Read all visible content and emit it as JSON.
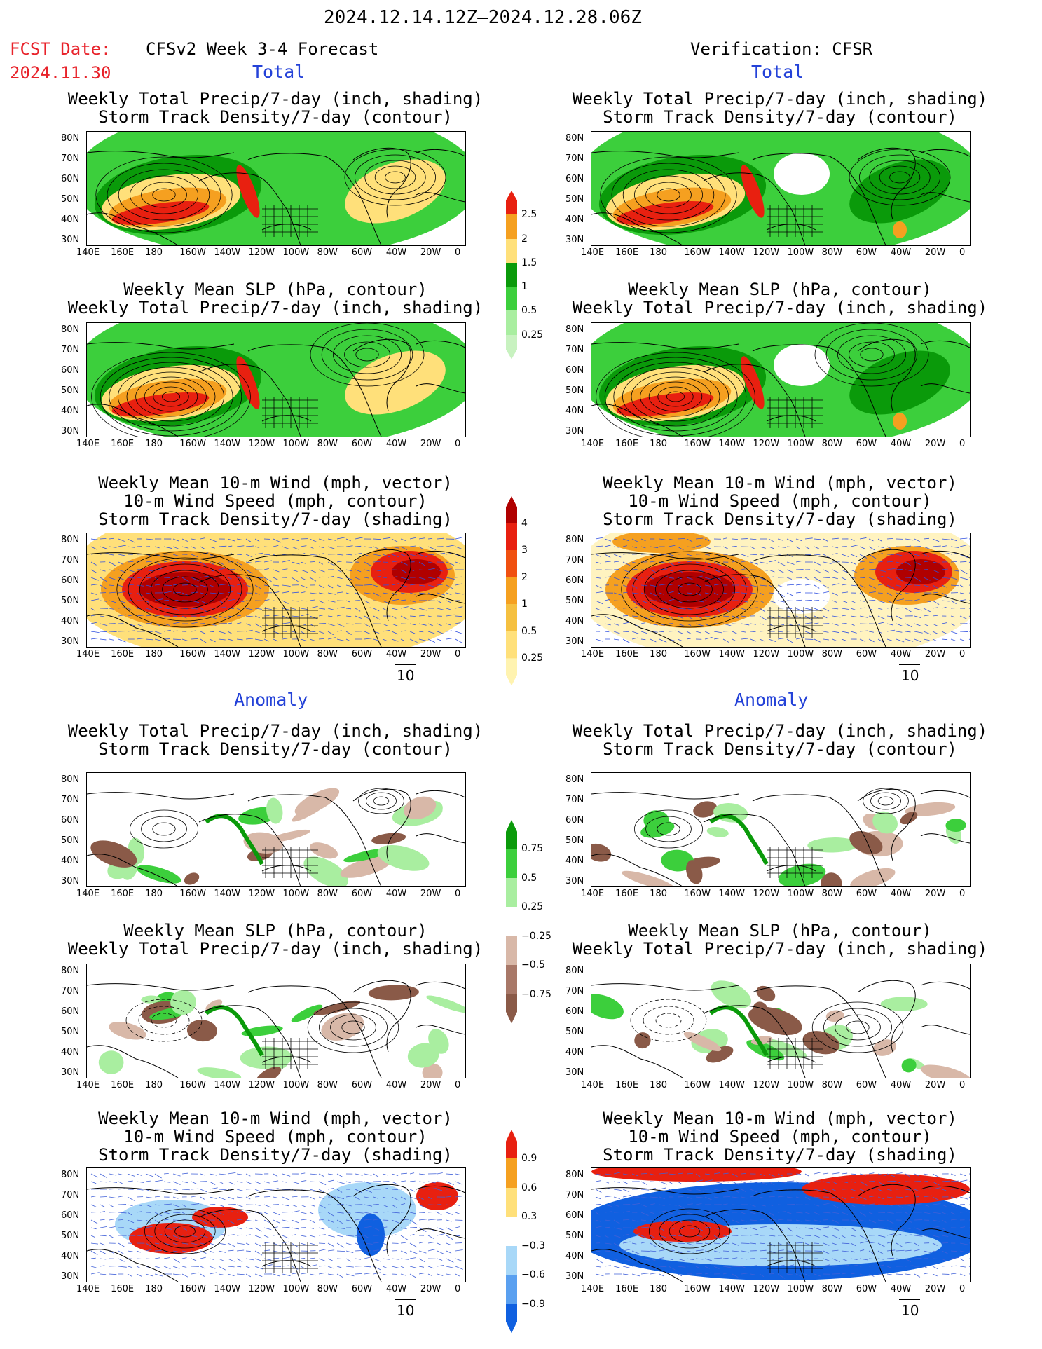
{
  "header": {
    "date_range": "2024.12.14.12Z–2024.12.28.06Z",
    "fcst_label": "FCST Date:",
    "fcst_date": "2024.11.30",
    "left_title": "CFSv2 Week 3-4 Forecast",
    "right_title": "Verification: CFSR"
  },
  "sections": {
    "total": "Total",
    "anomaly": "Anomaly"
  },
  "panel_titles": {
    "precip_storm": [
      "Weekly Total Precip/7-day (inch, shading)",
      "Storm Track Density/7-day (contour)"
    ],
    "slp_precip": [
      "Weekly Mean SLP (hPa, contour)",
      "Weekly Total Precip/7-day (inch, shading)"
    ],
    "wind": [
      "Weekly Mean 10-m Wind (mph, vector)",
      "10-m Wind Speed (mph, contour)",
      "Storm Track Density/7-day (shading)"
    ]
  },
  "axes": {
    "lat_labels": [
      "80N",
      "70N",
      "60N",
      "50N",
      "40N",
      "30N"
    ],
    "lon_labels": [
      "140E",
      "160E",
      "180",
      "160W",
      "140W",
      "120W",
      "100W",
      "80W",
      "60W",
      "40W",
      "20W",
      "0"
    ]
  },
  "colorbars": {
    "total_precip": [
      "2.5",
      "2",
      "1.5",
      "1",
      "0.5",
      "0.25"
    ],
    "total_storm": [
      "4",
      "3",
      "2",
      "1",
      "0.5",
      "0.25"
    ],
    "anom_precip": [
      "0.75",
      "0.5",
      "0.25",
      "−0.25",
      "−0.5",
      "−0.75"
    ],
    "anom_storm": [
      "0.9",
      "0.6",
      "0.3",
      "−0.3",
      "−0.6",
      "−0.9"
    ]
  },
  "vector_ref": "10",
  "colors": {
    "green_dark": "#0a9a0a",
    "green": "#3ccf3c",
    "green_light": "#a9eea0",
    "yellow": "#ffe07a",
    "orange": "#f5a020",
    "red": "#e82010",
    "dark_red": "#b00000",
    "brown": "#8a5a48",
    "tan": "#d8b8a8",
    "blue": "#1060e0",
    "light_blue": "#a8d8f8"
  }
}
